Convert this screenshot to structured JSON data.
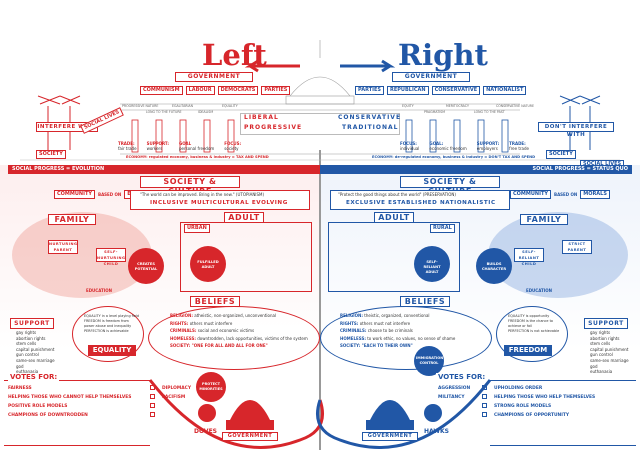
{
  "title_left": "Left",
  "title_right": "Right",
  "government": "GOVERNMENT",
  "left_parties": [
    "COMMUNISM",
    "LABOUR",
    "DEMOCRATS",
    "PARTIES"
  ],
  "right_parties": [
    "PARTIES",
    "REPUBLICAN",
    "CONSERVATIVE",
    "NATIONALIST"
  ],
  "left_pillars": [
    "PROGRESSIVE NATURE",
    "LONG TO THE FUTURE",
    "EGALITARIAN",
    "IDEALISM",
    "EQUALITY"
  ],
  "right_pillars": [
    "EQUITY",
    "PRAGMATISM",
    "MERITOCRACY",
    "LONG TO THE PAST",
    "CONSERVATIVE NATURE"
  ],
  "left_words": [
    "LIBERAL",
    "PROGRESSIVE"
  ],
  "right_words": [
    "CONSERVATIVE",
    "TRADITIONAL"
  ],
  "left_trade": "TRADE:",
  "left_trade_v": "fair trade",
  "left_support": "SUPPORT:",
  "left_support_v": "workers",
  "left_goal": "GOAL",
  "left_goal_v": "personal freedom",
  "left_focus": "FOCUS:",
  "left_focus_v": "society",
  "right_focus": "FOCUS:",
  "right_focus_v": "individual",
  "right_goal": "GOAL:",
  "right_goal_v": "economic freedom",
  "right_support": "SUPPORT:",
  "right_support_v": "employers",
  "right_trade": "TRADE:",
  "right_trade_v": "free trade",
  "left_economy": "ECONOMY: regulated economy, business & industry = TAX AND SPEND",
  "right_economy": "ECONOMY: de-regulated economy, business & industry = DON'T TAX AND SPEND",
  "interfere_with": "INTERFERE WITH",
  "dont_interfere_with": "DON'T INTERFERE WITH",
  "society": "SOCIETY",
  "social_lives": "SOCIAL LIVES",
  "social_left": "SOCIAL PROGRESS = EVOLUTION",
  "social_right": "SOCIAL PROGRESS = STATUS QUO",
  "society_culture": "SOCIETY & CULTURE",
  "left_community": "COMMUNITY",
  "left_based_on": "BASED ON",
  "left_ethics": "ETHICS",
  "right_community": "COMMUNITY",
  "right_based_on": "BASED ON",
  "right_morals": "MORALS",
  "left_quote": "\"The world can be improved. Bring in the new.\" (UTOPIANISM)",
  "right_quote": "\"Protect the good things about the world\" (PRESERVATION)",
  "left_traits": "INCLUSIVE  MULTICULTURAL  EVOLVING",
  "right_traits": "EXCLUSIVE  ESTABLISHED  NATIONALISTIC",
  "family": "FAMILY",
  "adult": "ADULT",
  "urban": "URBAN",
  "rural": "RURAL",
  "left_family_labels": [
    "NURTURING PARENT",
    "SELF-NURTURING CHILD",
    "CREATES POTENTIAL",
    "EDUCATION",
    "FULFILLED ADULT"
  ],
  "right_family_labels": [
    "SELF-RELIANT ADULT",
    "BUILDS CHARACTER",
    "SELF-RELIANT CHILD",
    "STRICT PARENT",
    "EDUCATION"
  ],
  "beliefs": "BELIEFS",
  "left_beliefs": [
    {
      "k": "RELIGION:",
      "v": "atheistic, non-organized, unconventional"
    },
    {
      "k": "RIGHTS:",
      "v": "others must interfere"
    },
    {
      "k": "CRIMINALS:",
      "v": "social and economic victims"
    },
    {
      "k": "HOMELESS:",
      "v": "downtrodden, lack opportunities, victims of the system"
    },
    {
      "k": "SOCIETY:",
      "v": "\"ONE FOR ALL AND ALL FOR ONE\""
    }
  ],
  "right_beliefs": [
    {
      "k": "RELIGION:",
      "v": "theistic, organized, conventional"
    },
    {
      "k": "RIGHTS:",
      "v": "others must not interfere"
    },
    {
      "k": "CRIMINALS:",
      "v": "choose to be criminals"
    },
    {
      "k": "HOMELESS:",
      "v": "to work ethic, no values, no sense of shame"
    },
    {
      "k": "SOCIETY:",
      "v": "\"EACH TO THEIR OWN\""
    }
  ],
  "support": "SUPPORT",
  "left_support_list": [
    "gay rights",
    "abortion rights",
    "stem cells",
    "capital punishment",
    "gun control",
    "same-sex marriage",
    "god",
    "euthanasia"
  ],
  "right_support_list": [
    "gay rights",
    "abortion rights",
    "stem cells",
    "capital punishment",
    "gun control",
    "same-sex marriage",
    "god",
    "euthanasia"
  ],
  "left_equality_cloud": [
    "EQUALITY in a level playing field",
    "FREEDOM is freedom from power abuse and inequality",
    "PERFECTION is achievable"
  ],
  "right_freedom_cloud": [
    "EQUALITY is opportunity",
    "FREEDOM is the chance to achieve or fail",
    "PERFECTION is not achievable"
  ],
  "equality": "EQUALITY",
  "freedom": "FREEDOM",
  "protect_minorities": "PROTECT MINORITIES",
  "immigration_control": "IMMIGRATION CONTROL",
  "votes_for": "VOTES FOR:",
  "left_votes": [
    "FAIRNESS",
    "HELPING THOSE WHO CANNOT HELP THEMSELVES",
    "POSITIVE ROLE MODELS",
    "CHAMPIONS OF DOWNTRODDEN"
  ],
  "left_votes2": [
    "DIPLOMACY",
    "PACIFISM"
  ],
  "right_votes": [
    "UPHOLDING ORDER",
    "HELPING THOSE WHO HELP THEMSELVES",
    "STRONG ROLE MODELS",
    "CHAMPIONS OF OPPORTUNITY"
  ],
  "right_votes2": [
    "AGGRESSION",
    "MILITANCY"
  ],
  "doves": "DOVES",
  "hawks": "HAWKS",
  "colors": {
    "red": "#d7262b",
    "blue": "#2157a6",
    "lightred": "#f7c9c4",
    "lightblue": "#c5d6ef"
  }
}
